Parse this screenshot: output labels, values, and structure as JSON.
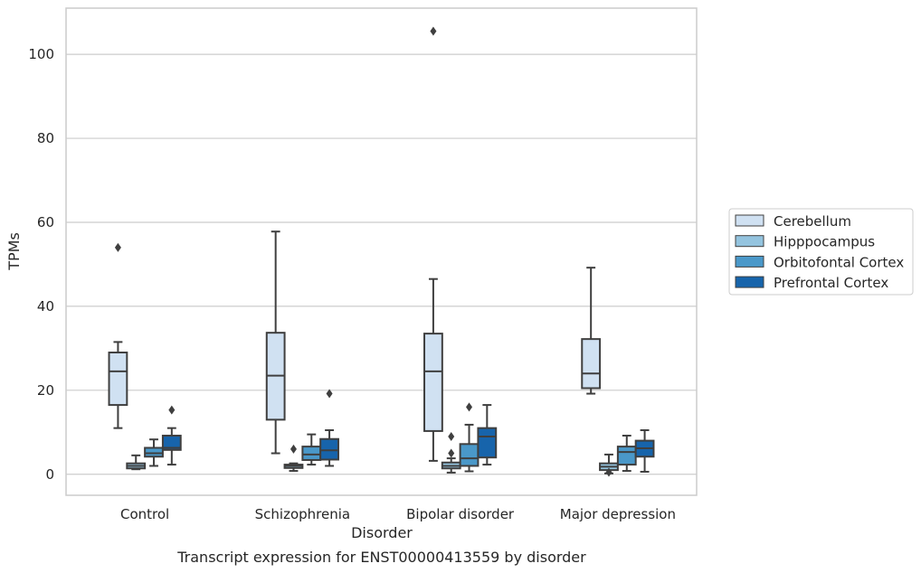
{
  "caption": "Transcript expression for ENST00000413559 by disorder",
  "chart_data": {
    "type": "box",
    "xlabel": "Disorder",
    "ylabel": "TPMs",
    "ylim": [
      -5,
      111
    ],
    "yticks": [
      0,
      20,
      40,
      60,
      80,
      100
    ],
    "grid": "horizontal",
    "legend_position": "right",
    "categories": [
      "Control",
      "Schizophrenia",
      "Bipolar disorder",
      "Major depression"
    ],
    "series": [
      {
        "name": "Cerebellum",
        "color": "#d0e1f2",
        "boxes": [
          {
            "whislo": 11,
            "q1": 16.5,
            "med": 24.5,
            "q3": 29,
            "whishi": 31.5,
            "fliers": [
              54
            ]
          },
          {
            "whislo": 5,
            "q1": 13,
            "med": 23.5,
            "q3": 33.7,
            "whishi": 57.8,
            "fliers": []
          },
          {
            "whislo": 3.2,
            "q1": 10.3,
            "med": 24.5,
            "q3": 33.5,
            "whishi": 46.5,
            "fliers": [
              105.5
            ]
          },
          {
            "whislo": 19.2,
            "q1": 20.5,
            "med": 24,
            "q3": 32.2,
            "whishi": 49.2,
            "fliers": []
          }
        ]
      },
      {
        "name": "Hipppocampus",
        "color": "#94c4df",
        "boxes": [
          {
            "whislo": 1.2,
            "q1": 1.4,
            "med": 2,
            "q3": 2.6,
            "whishi": 4.5,
            "fliers": []
          },
          {
            "whislo": 0.8,
            "q1": 1.5,
            "med": 2,
            "q3": 2.3,
            "whishi": 2.6,
            "fliers": [
              6
            ]
          },
          {
            "whislo": 0.4,
            "q1": 1.4,
            "med": 2,
            "q3": 2.8,
            "whishi": 3.8,
            "fliers": [
              5,
              9
            ]
          },
          {
            "whislo": 0.2,
            "q1": 1,
            "med": 1.8,
            "q3": 2.6,
            "whishi": 4.7,
            "fliers": [
              0.5
            ]
          }
        ]
      },
      {
        "name": "Orbitofontal Cortex",
        "color": "#4a98c9",
        "boxes": [
          {
            "whislo": 2,
            "q1": 4.2,
            "med": 5,
            "q3": 6.3,
            "whishi": 8.3,
            "fliers": []
          },
          {
            "whislo": 2.3,
            "q1": 3.4,
            "med": 4.7,
            "q3": 6.6,
            "whishi": 9.5,
            "fliers": []
          },
          {
            "whislo": 0.7,
            "q1": 2,
            "med": 3.8,
            "q3": 7.2,
            "whishi": 11.8,
            "fliers": [
              16
            ]
          },
          {
            "whislo": 0.8,
            "q1": 2.3,
            "med": 5.3,
            "q3": 6.6,
            "whishi": 9.2,
            "fliers": []
          }
        ]
      },
      {
        "name": "Prefrontal Cortex",
        "color": "#1764ab",
        "boxes": [
          {
            "whislo": 2.3,
            "q1": 5.8,
            "med": 6.3,
            "q3": 9.2,
            "whishi": 11,
            "fliers": [
              15.3
            ]
          },
          {
            "whislo": 2,
            "q1": 3.5,
            "med": 5.7,
            "q3": 8.4,
            "whishi": 10.5,
            "fliers": [
              19.2
            ]
          },
          {
            "whislo": 2.3,
            "q1": 4,
            "med": 9,
            "q3": 11,
            "whishi": 16.5,
            "fliers": []
          },
          {
            "whislo": 0.6,
            "q1": 4.2,
            "med": 6.2,
            "q3": 8,
            "whishi": 10.5,
            "fliers": []
          }
        ]
      }
    ]
  }
}
